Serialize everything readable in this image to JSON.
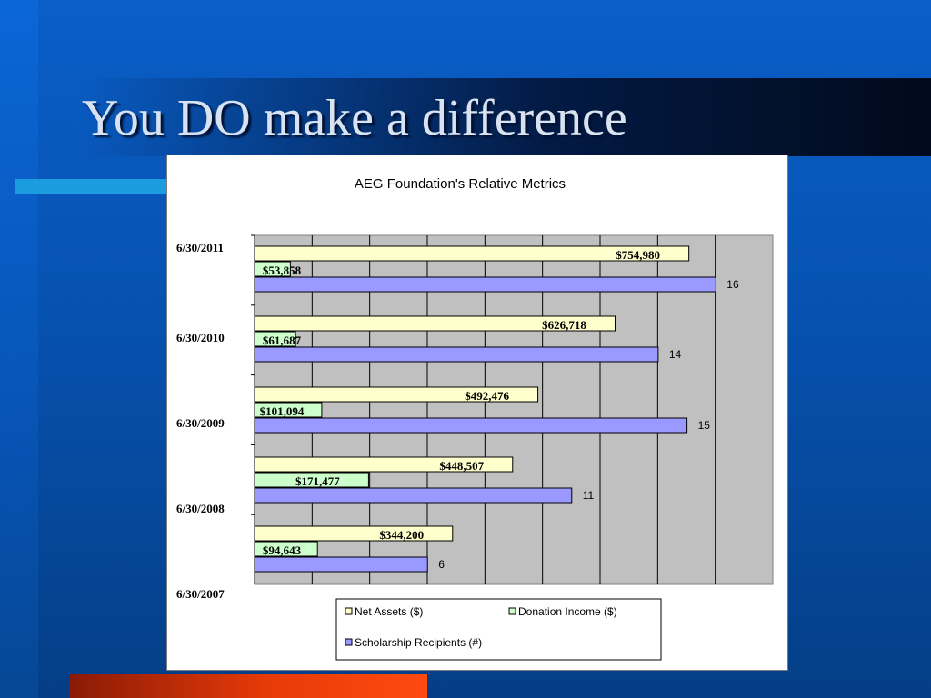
{
  "slide": {
    "title": "You DO make a difference"
  },
  "colors": {
    "net_assets": "#FFFFCC",
    "donation_income": "#CCFFCC",
    "scholarship_recipients": "#9999FF",
    "plot_area": "#C0C0C0"
  },
  "chart_data": {
    "type": "bar",
    "orientation": "horizontal",
    "title": "AEG Foundation's Relative Metrics",
    "y_tick_labels": [
      "6/30/2011",
      "6/30/2010",
      "6/30/2009",
      "6/30/2008",
      "6/30/2007"
    ],
    "categories": [
      "6/30/2011",
      "6/30/2010",
      "6/30/2009",
      "6/30/2008",
      "6/30/2007"
    ],
    "legend_position": "bottom",
    "grid": true,
    "series": [
      {
        "name": "Net Assets ($)",
        "values": [
          754980,
          626718,
          492476,
          448507,
          344200
        ],
        "labels": [
          "$754,980",
          "$626,718",
          "$492,476",
          "$448,507",
          "$344,200"
        ]
      },
      {
        "name": "Donation Income ($)",
        "values": [
          53858,
          61687,
          101094,
          171477,
          94643
        ],
        "labels": [
          "$53,858",
          "$61,687",
          "$101,094",
          "$171,477",
          "$94,643"
        ]
      },
      {
        "name": "Scholarship Recipients (#)",
        "values": [
          16,
          14,
          15,
          11,
          6
        ],
        "labels": [
          "16",
          "14",
          "15",
          "11",
          "6"
        ]
      }
    ]
  }
}
